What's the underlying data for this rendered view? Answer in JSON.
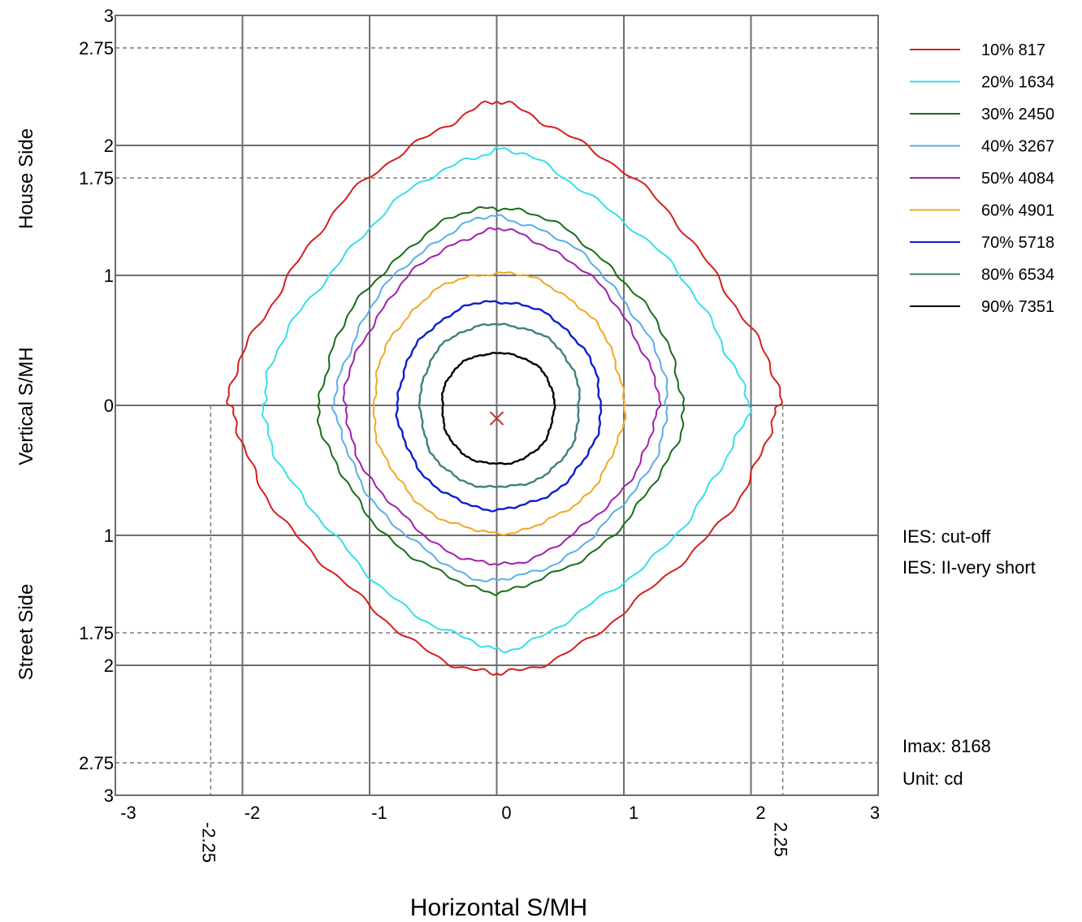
{
  "chart_data": {
    "type": "line",
    "subtype": "isocandela-contour",
    "xlabel": "Horizontal S/MH",
    "ylabel": "Vertical  S/MH",
    "y_side_labels": {
      "top": "House Side",
      "bottom": "Street Side"
    },
    "xlim": [
      -3,
      3
    ],
    "ylim": [
      -3,
      3
    ],
    "x_ticks": [
      {
        "value": -3,
        "label": "-3"
      },
      {
        "value": -2,
        "label": "-2"
      },
      {
        "value": -1,
        "label": "-1"
      },
      {
        "value": 0,
        "label": "0"
      },
      {
        "value": 1,
        "label": "1"
      },
      {
        "value": 2,
        "label": "2"
      },
      {
        "value": 3,
        "label": "3"
      }
    ],
    "x_dashed_ticks": [
      {
        "value": -2.25,
        "label": "-2.25"
      },
      {
        "value": 2.25,
        "label": "2.25"
      }
    ],
    "y_ticks": [
      {
        "value": 3,
        "label": "3"
      },
      {
        "value": 2.75,
        "label": "2.75"
      },
      {
        "value": 2,
        "label": "2"
      },
      {
        "value": 1.75,
        "label": "1.75"
      },
      {
        "value": 1,
        "label": "1"
      },
      {
        "value": 0,
        "label": "0"
      },
      {
        "value": -1,
        "label": "1"
      },
      {
        "value": -1.75,
        "label": "1.75"
      },
      {
        "value": -2,
        "label": "2"
      },
      {
        "value": -2.75,
        "label": "2.75"
      },
      {
        "value": -3,
        "label": "3"
      }
    ],
    "solid_grid_x": [
      -2,
      -1,
      0,
      1,
      2
    ],
    "solid_grid_y": [
      2,
      1,
      0,
      -1,
      -2
    ],
    "dashed_grid_x": [
      -2.25,
      2.25
    ],
    "dashed_grid_y": [
      2.75,
      1.75,
      -1.75,
      -2.75
    ],
    "center_marker": {
      "x": 0,
      "y": -0.1,
      "color": "#c0392b"
    },
    "legend_position": "top-right",
    "series": [
      {
        "name": "10% 817",
        "color": "#d42020",
        "extent": {
          "right": 2.22,
          "left": -2.1,
          "top": 2.32,
          "bottom": -2.08
        }
      },
      {
        "name": "20% 1634",
        "color": "#35dfe8",
        "extent": {
          "right": 1.97,
          "left": -1.85,
          "top": 1.97,
          "bottom": -1.88
        }
      },
      {
        "name": "30% 2450",
        "color": "#1b6b1b",
        "extent": {
          "right": 1.47,
          "left": -1.4,
          "top": 1.53,
          "bottom": -1.43
        }
      },
      {
        "name": "40% 3267",
        "color": "#5aaee6",
        "extent": {
          "right": 1.35,
          "left": -1.27,
          "top": 1.45,
          "bottom": -1.35
        }
      },
      {
        "name": "50% 4084",
        "color": "#a020b0",
        "extent": {
          "right": 1.27,
          "left": -1.2,
          "top": 1.35,
          "bottom": -1.23
        }
      },
      {
        "name": "60% 4901",
        "color": "#f4a623",
        "extent": {
          "right": 1.0,
          "left": -0.97,
          "top": 1.02,
          "bottom": -0.98
        }
      },
      {
        "name": "70% 5718",
        "color": "#0b1fcf",
        "extent": {
          "right": 0.82,
          "left": -0.78,
          "top": 0.8,
          "bottom": -0.8
        }
      },
      {
        "name": "80% 6534",
        "color": "#3f7f7d",
        "extent": {
          "right": 0.65,
          "left": -0.6,
          "top": 0.62,
          "bottom": -0.63
        }
      },
      {
        "name": "90% 7351",
        "color": "#000000",
        "extent": {
          "right": 0.45,
          "left": -0.43,
          "top": 0.4,
          "bottom": -0.45
        }
      }
    ]
  },
  "notes": {
    "cutoff": "IES:  cut-off",
    "type": "IES:  II-very short",
    "imax": "Imax: 8168",
    "unit": "Unit: cd"
  }
}
